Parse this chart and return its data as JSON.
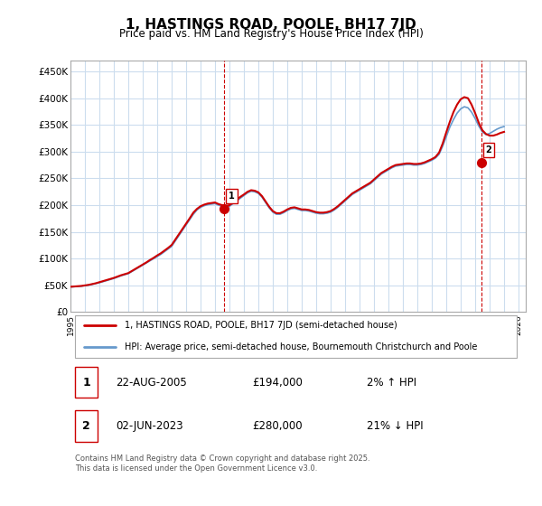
{
  "title": "1, HASTINGS ROAD, POOLE, BH17 7JD",
  "subtitle": "Price paid vs. HM Land Registry's House Price Index (HPI)",
  "ylabel_ticks": [
    "£0",
    "£50K",
    "£100K",
    "£150K",
    "£200K",
    "£250K",
    "£300K",
    "£350K",
    "£400K",
    "£450K"
  ],
  "ytick_values": [
    0,
    50000,
    100000,
    150000,
    200000,
    250000,
    300000,
    350000,
    400000,
    450000
  ],
  "ylim": [
    0,
    470000
  ],
  "xlim_start": 1995.5,
  "xlim_end": 2026.5,
  "xticks": [
    1995,
    1996,
    1997,
    1998,
    1999,
    2000,
    2001,
    2002,
    2003,
    2004,
    2005,
    2006,
    2007,
    2008,
    2009,
    2010,
    2011,
    2012,
    2013,
    2014,
    2015,
    2016,
    2017,
    2018,
    2019,
    2020,
    2021,
    2022,
    2023,
    2024,
    2025,
    2026
  ],
  "red_line_color": "#cc0000",
  "blue_line_color": "#6699cc",
  "grid_color": "#ccddee",
  "background_color": "#ffffff",
  "sale1_x": 2005.65,
  "sale1_y": 194000,
  "sale1_label": "1",
  "sale2_x": 2023.42,
  "sale2_y": 280000,
  "sale2_label": "2",
  "vline1_x": 2005.65,
  "vline2_x": 2023.42,
  "legend_line1": "1, HASTINGS ROAD, POOLE, BH17 7JD (semi-detached house)",
  "legend_line2": "HPI: Average price, semi-detached house, Bournemouth Christchurch and Poole",
  "table_row1": [
    "1",
    "22-AUG-2005",
    "£194,000",
    "2% ↑ HPI"
  ],
  "table_row2": [
    "2",
    "02-JUN-2023",
    "£280,000",
    "21% ↓ HPI"
  ],
  "footnote": "Contains HM Land Registry data © Crown copyright and database right 2025.\nThis data is licensed under the Open Government Licence v3.0.",
  "hpi_data_x": [
    1995.0,
    1995.25,
    1995.5,
    1995.75,
    1996.0,
    1996.25,
    1996.5,
    1996.75,
    1997.0,
    1997.25,
    1997.5,
    1997.75,
    1998.0,
    1998.25,
    1998.5,
    1998.75,
    1999.0,
    1999.25,
    1999.5,
    1999.75,
    2000.0,
    2000.25,
    2000.5,
    2000.75,
    2001.0,
    2001.25,
    2001.5,
    2001.75,
    2002.0,
    2002.25,
    2002.5,
    2002.75,
    2003.0,
    2003.25,
    2003.5,
    2003.75,
    2004.0,
    2004.25,
    2004.5,
    2004.75,
    2005.0,
    2005.25,
    2005.5,
    2005.75,
    2006.0,
    2006.25,
    2006.5,
    2006.75,
    2007.0,
    2007.25,
    2007.5,
    2007.75,
    2008.0,
    2008.25,
    2008.5,
    2008.75,
    2009.0,
    2009.25,
    2009.5,
    2009.75,
    2010.0,
    2010.25,
    2010.5,
    2010.75,
    2011.0,
    2011.25,
    2011.5,
    2011.75,
    2012.0,
    2012.25,
    2012.5,
    2012.75,
    2013.0,
    2013.25,
    2013.5,
    2013.75,
    2014.0,
    2014.25,
    2014.5,
    2014.75,
    2015.0,
    2015.25,
    2015.5,
    2015.75,
    2016.0,
    2016.25,
    2016.5,
    2016.75,
    2017.0,
    2017.25,
    2017.5,
    2017.75,
    2018.0,
    2018.25,
    2018.5,
    2018.75,
    2019.0,
    2019.25,
    2019.5,
    2019.75,
    2020.0,
    2020.25,
    2020.5,
    2020.75,
    2021.0,
    2021.25,
    2021.5,
    2021.75,
    2022.0,
    2022.25,
    2022.5,
    2022.75,
    2023.0,
    2023.25,
    2023.5,
    2023.75,
    2024.0,
    2024.25,
    2024.5,
    2024.75,
    2025.0
  ],
  "hpi_data_y": [
    47000,
    47500,
    48000,
    48500,
    49500,
    50500,
    52000,
    53500,
    55000,
    57000,
    59000,
    61000,
    63000,
    65500,
    68000,
    70000,
    72000,
    76000,
    80000,
    84000,
    88000,
    92000,
    96000,
    100000,
    104000,
    108000,
    113000,
    118000,
    123000,
    133000,
    143000,
    153000,
    163000,
    173000,
    183000,
    191000,
    196000,
    199000,
    201000,
    202000,
    203000,
    200000,
    198000,
    196000,
    198000,
    203000,
    208000,
    213000,
    218000,
    223000,
    226000,
    225000,
    222000,
    215000,
    205000,
    195000,
    187000,
    183000,
    183000,
    186000,
    190000,
    193000,
    194000,
    192000,
    190000,
    190000,
    189000,
    187000,
    185000,
    184000,
    184000,
    185000,
    187000,
    191000,
    196000,
    202000,
    208000,
    214000,
    220000,
    224000,
    228000,
    232000,
    236000,
    240000,
    246000,
    252000,
    258000,
    262000,
    266000,
    270000,
    273000,
    274000,
    275000,
    276000,
    276000,
    275000,
    275000,
    276000,
    278000,
    281000,
    284000,
    288000,
    295000,
    310000,
    328000,
    346000,
    360000,
    372000,
    380000,
    384000,
    382000,
    374000,
    362000,
    348000,
    337000,
    332000,
    334000,
    338000,
    342000,
    345000,
    347000
  ],
  "price_line_x": [
    1995.0,
    1995.25,
    1995.5,
    1995.75,
    1996.0,
    1996.25,
    1996.5,
    1996.75,
    1997.0,
    1997.25,
    1997.5,
    1997.75,
    1998.0,
    1998.25,
    1998.5,
    1998.75,
    1999.0,
    1999.25,
    1999.5,
    1999.75,
    2000.0,
    2000.25,
    2000.5,
    2000.75,
    2001.0,
    2001.25,
    2001.5,
    2001.75,
    2002.0,
    2002.25,
    2002.5,
    2002.75,
    2003.0,
    2003.25,
    2003.5,
    2003.75,
    2004.0,
    2004.25,
    2004.5,
    2004.75,
    2005.0,
    2005.25,
    2005.5,
    2005.75,
    2006.0,
    2006.25,
    2006.5,
    2006.75,
    2007.0,
    2007.25,
    2007.5,
    2007.75,
    2008.0,
    2008.25,
    2008.5,
    2008.75,
    2009.0,
    2009.25,
    2009.5,
    2009.75,
    2010.0,
    2010.25,
    2010.5,
    2010.75,
    2011.0,
    2011.25,
    2011.5,
    2011.75,
    2012.0,
    2012.25,
    2012.5,
    2012.75,
    2013.0,
    2013.25,
    2013.5,
    2013.75,
    2014.0,
    2014.25,
    2014.5,
    2014.75,
    2015.0,
    2015.25,
    2015.5,
    2015.75,
    2016.0,
    2016.25,
    2016.5,
    2016.75,
    2017.0,
    2017.25,
    2017.5,
    2017.75,
    2018.0,
    2018.25,
    2018.5,
    2018.75,
    2019.0,
    2019.25,
    2019.5,
    2019.75,
    2020.0,
    2020.25,
    2020.5,
    2020.75,
    2021.0,
    2021.25,
    2021.5,
    2021.75,
    2022.0,
    2022.25,
    2022.5,
    2022.75,
    2023.0,
    2023.25,
    2023.5,
    2023.75,
    2024.0,
    2024.25,
    2024.5,
    2024.75,
    2025.0
  ],
  "price_line_y": [
    47500,
    48000,
    48500,
    49000,
    50000,
    51000,
    52500,
    54000,
    56000,
    58000,
    60000,
    62000,
    64000,
    66500,
    69000,
    71000,
    73000,
    77000,
    81000,
    85000,
    89000,
    93000,
    97500,
    101500,
    106000,
    110000,
    115000,
    120000,
    125500,
    135500,
    145500,
    155500,
    165500,
    175500,
    186000,
    193000,
    198000,
    201000,
    203000,
    204000,
    205000,
    202000,
    200000,
    198500,
    200000,
    205000,
    210000,
    215500,
    220000,
    225000,
    228000,
    227000,
    224000,
    217000,
    207000,
    197000,
    189000,
    185000,
    185000,
    188000,
    192000,
    195000,
    196000,
    194000,
    192000,
    192000,
    191000,
    189000,
    187000,
    186000,
    186000,
    187000,
    189000,
    193000,
    198000,
    204000,
    210000,
    216000,
    222000,
    226000,
    230000,
    234000,
    238000,
    242000,
    248000,
    254000,
    260000,
    264000,
    268000,
    272000,
    275000,
    276000,
    277000,
    278000,
    278000,
    277000,
    277000,
    278000,
    280000,
    283000,
    286000,
    290000,
    298000,
    315000,
    336000,
    356000,
    374000,
    388000,
    398000,
    402000,
    400000,
    388000,
    372000,
    354000,
    340000,
    333000,
    330000,
    330000,
    332000,
    335000,
    337000
  ]
}
